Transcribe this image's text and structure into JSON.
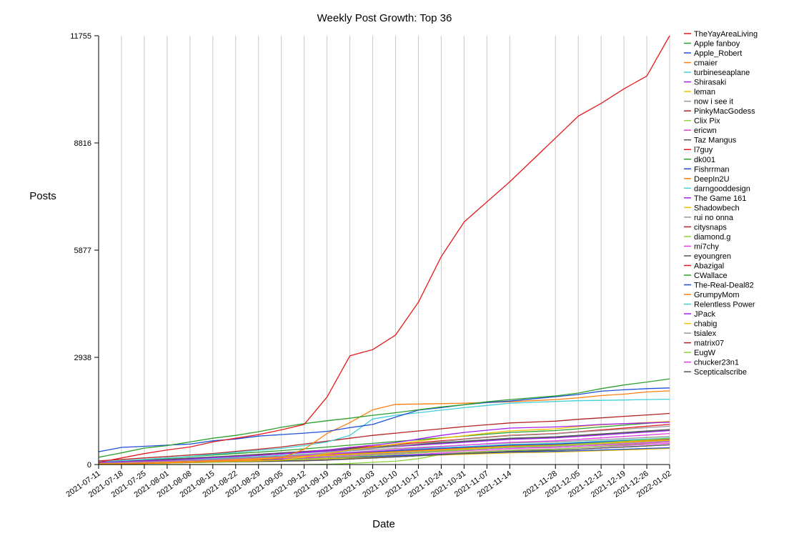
{
  "chart_data": {
    "type": "line",
    "title": "Weekly Post Growth: Top 36",
    "xlabel": "Date",
    "ylabel": "Posts",
    "ylim": [
      0,
      11755
    ],
    "yticks": [
      0,
      2938,
      5877,
      8816,
      11755
    ],
    "grid": "vertical",
    "legend_position": "right",
    "x": [
      "2021-07-11",
      "2021-07-18",
      "2021-07-25",
      "2021-08-01",
      "2021-08-08",
      "2021-08-15",
      "2021-08-22",
      "2021-08-29",
      "2021-09-05",
      "2021-09-12",
      "2021-09-19",
      "2021-09-26",
      "2021-10-03",
      "2021-10-10",
      "2021-10-17",
      "2021-10-24",
      "2021-10-31",
      "2021-11-07",
      "2021-11-14",
      "2021-11-28",
      "2021-12-05",
      "2021-12-12",
      "2021-12-19",
      "2021-12-26",
      "2022-01-02"
    ],
    "series": [
      {
        "name": "TheYayAreaLiving",
        "color": "#e41a1c",
        "values": [
          60,
          180,
          300,
          400,
          480,
          620,
          720,
          820,
          950,
          1100,
          1850,
          2980,
          3150,
          3550,
          4450,
          5700,
          6650,
          7200,
          7750,
          8950,
          9550,
          9900,
          10300,
          10650,
          11755
        ]
      },
      {
        "name": "Apple fanboy",
        "color": "#2ca02c",
        "values": [
          200,
          320,
          450,
          520,
          620,
          720,
          800,
          900,
          1020,
          1120,
          1200,
          1270,
          1350,
          1420,
          1500,
          1580,
          1640,
          1720,
          1780,
          1880,
          1960,
          2080,
          2180,
          2260,
          2350
        ]
      },
      {
        "name": "Apple_Robert",
        "color": "#1f4fd6",
        "values": [
          350,
          470,
          500,
          530,
          560,
          650,
          700,
          780,
          820,
          860,
          910,
          1010,
          1100,
          1300,
          1490,
          1560,
          1640,
          1700,
          1740,
          1860,
          1920,
          2010,
          2050,
          2080,
          2100
        ]
      },
      {
        "name": "cmaier",
        "color": "#ff7f0e",
        "values": [
          10,
          20,
          30,
          40,
          60,
          80,
          100,
          130,
          180,
          420,
          850,
          1150,
          1500,
          1650,
          1660,
          1670,
          1680,
          1700,
          1720,
          1780,
          1830,
          1890,
          1930,
          1990,
          2020
        ]
      },
      {
        "name": "turbineseaplane",
        "color": "#40d0d8",
        "values": [
          80,
          110,
          140,
          180,
          220,
          280,
          330,
          390,
          440,
          520,
          620,
          800,
          1250,
          1350,
          1420,
          1490,
          1560,
          1620,
          1680,
          1730,
          1750,
          1760,
          1770,
          1780,
          1790
        ]
      },
      {
        "name": "Shirasaki",
        "color": "#a020f0",
        "values": [
          60,
          80,
          100,
          120,
          150,
          190,
          220,
          250,
          290,
          340,
          400,
          470,
          530,
          600,
          700,
          800,
          880,
          940,
          1000,
          1030,
          1060,
          1100,
          1120,
          1140,
          1160
        ]
      },
      {
        "name": "leman",
        "color": "#f0c000",
        "values": [
          20,
          30,
          40,
          50,
          60,
          80,
          90,
          100,
          120,
          200,
          300,
          400,
          480,
          560,
          640,
          720,
          790,
          860,
          920,
          980,
          1040,
          1090,
          1120,
          1150,
          1180
        ]
      },
      {
        "name": "now i see it",
        "color": "#999999",
        "values": [
          40,
          60,
          80,
          100,
          120,
          140,
          170,
          200,
          230,
          270,
          320,
          380,
          440,
          500,
          570,
          630,
          690,
          740,
          790,
          840,
          890,
          930,
          970,
          1010,
          1050
        ]
      },
      {
        "name": "PinkyMacGodess",
        "color": "#b22222",
        "values": [
          100,
          140,
          180,
          220,
          260,
          300,
          360,
          420,
          480,
          560,
          640,
          720,
          800,
          860,
          920,
          980,
          1040,
          1090,
          1140,
          1190,
          1240,
          1280,
          1320,
          1360,
          1400
        ]
      },
      {
        "name": "Clix Pix",
        "color": "#8ad43c",
        "values": [
          10,
          20,
          30,
          40,
          50,
          60,
          80,
          100,
          120,
          150,
          180,
          210,
          250,
          280,
          320,
          360,
          400,
          440,
          480,
          520,
          560,
          600,
          640,
          680,
          720
        ]
      },
      {
        "name": "ericwn",
        "color": "#e040e0",
        "values": [
          30,
          50,
          70,
          90,
          110,
          130,
          160,
          190,
          220,
          250,
          290,
          330,
          370,
          410,
          450,
          490,
          530,
          570,
          610,
          650,
          690,
          730,
          770,
          810,
          850
        ]
      },
      {
        "name": "Taz Mangus",
        "color": "#555555",
        "values": [
          50,
          80,
          110,
          140,
          170,
          200,
          240,
          280,
          320,
          360,
          400,
          440,
          480,
          520,
          560,
          600,
          640,
          680,
          720,
          760,
          800,
          840,
          880,
          920,
          960
        ]
      },
      {
        "name": "l7guy",
        "color": "#e41a1c",
        "values": [
          40,
          70,
          100,
          130,
          160,
          190,
          230,
          270,
          310,
          350,
          400,
          450,
          500,
          550,
          600,
          650,
          700,
          750,
          800,
          850,
          900,
          950,
          1000,
          1050,
          1100
        ]
      },
      {
        "name": "dk001",
        "color": "#2ca02c",
        "values": [
          60,
          100,
          140,
          180,
          220,
          260,
          300,
          340,
          380,
          430,
          480,
          530,
          580,
          630,
          680,
          730,
          780,
          830,
          880,
          930,
          980,
          1030,
          1080,
          1130,
          1180
        ]
      },
      {
        "name": "Fishrrman",
        "color": "#1f4fd6",
        "values": [
          30,
          50,
          70,
          90,
          110,
          140,
          170,
          200,
          230,
          260,
          290,
          320,
          350,
          380,
          410,
          440,
          470,
          500,
          530,
          560,
          590,
          620,
          650,
          680,
          710
        ]
      },
      {
        "name": "DeepIn2U",
        "color": "#ff7f0e",
        "values": [
          20,
          40,
          60,
          80,
          100,
          120,
          150,
          180,
          210,
          240,
          270,
          300,
          330,
          360,
          390,
          420,
          450,
          480,
          510,
          540,
          570,
          600,
          630,
          660,
          690
        ]
      },
      {
        "name": "darngooddesign",
        "color": "#40d0d8",
        "values": [
          40,
          60,
          80,
          100,
          130,
          160,
          190,
          220,
          250,
          280,
          310,
          340,
          370,
          400,
          430,
          460,
          490,
          520,
          550,
          580,
          610,
          640,
          670,
          700,
          730
        ]
      },
      {
        "name": "The Game 161",
        "color": "#a020f0",
        "values": [
          50,
          80,
          110,
          140,
          170,
          200,
          230,
          260,
          290,
          330,
          370,
          410,
          450,
          490,
          530,
          570,
          610,
          650,
          690,
          730,
          770,
          810,
          850,
          890,
          930
        ]
      },
      {
        "name": "Shadowbech",
        "color": "#f0c000",
        "values": [
          20,
          35,
          50,
          70,
          90,
          110,
          130,
          160,
          190,
          220,
          250,
          280,
          310,
          340,
          370,
          400,
          430,
          460,
          490,
          520,
          550,
          580,
          610,
          640,
          670
        ]
      },
      {
        "name": "rui no onna",
        "color": "#999999",
        "values": [
          30,
          50,
          70,
          90,
          110,
          130,
          150,
          170,
          190,
          210,
          230,
          260,
          290,
          320,
          350,
          380,
          410,
          440,
          470,
          500,
          530,
          560,
          590,
          620,
          650
        ]
      },
      {
        "name": "citysnaps",
        "color": "#b22222",
        "values": [
          40,
          60,
          80,
          100,
          120,
          140,
          170,
          200,
          230,
          260,
          290,
          320,
          350,
          380,
          410,
          440,
          470,
          500,
          530,
          560,
          590,
          620,
          650,
          680,
          700
        ]
      },
      {
        "name": "diamond.g",
        "color": "#8ad43c",
        "values": [
          50,
          70,
          90,
          110,
          130,
          150,
          170,
          190,
          210,
          230,
          260,
          290,
          320,
          350,
          380,
          410,
          440,
          470,
          500,
          530,
          560,
          590,
          620,
          650,
          680
        ]
      },
      {
        "name": "mi7chy",
        "color": "#e040e0",
        "values": [
          30,
          45,
          60,
          75,
          90,
          105,
          120,
          140,
          160,
          180,
          200,
          230,
          260,
          290,
          320,
          350,
          380,
          410,
          440,
          470,
          500,
          530,
          560,
          590,
          620
        ]
      },
      {
        "name": "eyoungren",
        "color": "#555555",
        "values": [
          20,
          30,
          40,
          50,
          60,
          70,
          80,
          90,
          100,
          110,
          130,
          150,
          180,
          210,
          240,
          270,
          300,
          330,
          360,
          390,
          420,
          450,
          480,
          510,
          540
        ]
      },
      {
        "name": "Abazigal",
        "color": "#e41a1c",
        "values": [
          20,
          40,
          60,
          80,
          100,
          120,
          140,
          170,
          200,
          230,
          260,
          290,
          320,
          350,
          380,
          410,
          440,
          470,
          500,
          530,
          560,
          590,
          620,
          650,
          680
        ]
      },
      {
        "name": "CWallace",
        "color": "#2ca02c",
        "values": [
          60,
          90,
          120,
          150,
          180,
          210,
          240,
          270,
          300,
          340,
          380,
          420,
          460,
          500,
          540,
          580,
          620,
          660,
          700,
          740,
          780,
          820,
          860,
          900,
          940
        ]
      },
      {
        "name": "The-Real-Deal82",
        "color": "#1f4fd6",
        "values": [
          20,
          35,
          50,
          65,
          80,
          95,
          110,
          125,
          140,
          160,
          180,
          200,
          220,
          240,
          260,
          280,
          300,
          320,
          340,
          360,
          380,
          400,
          420,
          440,
          460
        ]
      },
      {
        "name": "GrumpyMom",
        "color": "#ff7f0e",
        "values": [
          40,
          70,
          100,
          130,
          160,
          190,
          220,
          260,
          300,
          340,
          380,
          420,
          460,
          500,
          540,
          580,
          620,
          660,
          700,
          740,
          780,
          820,
          860,
          900,
          940
        ]
      },
      {
        "name": "Relentless Power",
        "color": "#40d0d8",
        "values": [
          30,
          50,
          70,
          90,
          110,
          130,
          150,
          180,
          210,
          240,
          270,
          300,
          330,
          360,
          390,
          420,
          450,
          480,
          510,
          540,
          570,
          600,
          630,
          660,
          690
        ]
      },
      {
        "name": "JPack",
        "color": "#a020f0",
        "values": [
          20,
          40,
          60,
          80,
          100,
          120,
          140,
          160,
          180,
          200,
          230,
          260,
          290,
          320,
          350,
          380,
          410,
          440,
          470,
          500,
          530,
          560,
          590,
          620,
          650
        ]
      },
      {
        "name": "chabig",
        "color": "#f0c000",
        "values": [
          10,
          20,
          30,
          45,
          60,
          75,
          90,
          105,
          120,
          140,
          160,
          180,
          200,
          220,
          240,
          260,
          280,
          300,
          320,
          340,
          360,
          380,
          400,
          420,
          440
        ]
      },
      {
        "name": "tsialex",
        "color": "#999999",
        "values": [
          50,
          80,
          110,
          140,
          170,
          200,
          230,
          260,
          290,
          320,
          350,
          380,
          410,
          440,
          470,
          500,
          530,
          560,
          590,
          620,
          650,
          680,
          710,
          740,
          770
        ]
      },
      {
        "name": "matrix07",
        "color": "#b22222",
        "values": [
          30,
          50,
          70,
          90,
          110,
          130,
          160,
          190,
          220,
          250,
          280,
          310,
          340,
          370,
          400,
          430,
          460,
          490,
          520,
          550,
          580,
          610,
          640,
          670,
          700
        ]
      },
      {
        "name": "EugW",
        "color": "#8ad43c",
        "values": [
          0,
          0,
          0,
          0,
          0,
          0,
          0,
          0,
          0,
          0,
          10,
          30,
          60,
          90,
          160,
          280,
          330,
          360,
          390,
          420,
          460,
          500,
          540,
          580,
          620
        ]
      },
      {
        "name": "chucker23n1",
        "color": "#e040e0",
        "values": [
          20,
          30,
          40,
          50,
          60,
          70,
          80,
          100,
          120,
          140,
          160,
          190,
          220,
          250,
          280,
          310,
          340,
          370,
          400,
          430,
          460,
          490,
          520,
          550,
          580
        ]
      },
      {
        "name": "Scepticalscribe",
        "color": "#555555",
        "values": [
          10,
          20,
          30,
          40,
          50,
          60,
          70,
          80,
          90,
          100,
          120,
          150,
          180,
          210,
          240,
          270,
          300,
          330,
          360,
          390,
          420,
          450,
          480,
          510,
          540
        ]
      }
    ]
  }
}
